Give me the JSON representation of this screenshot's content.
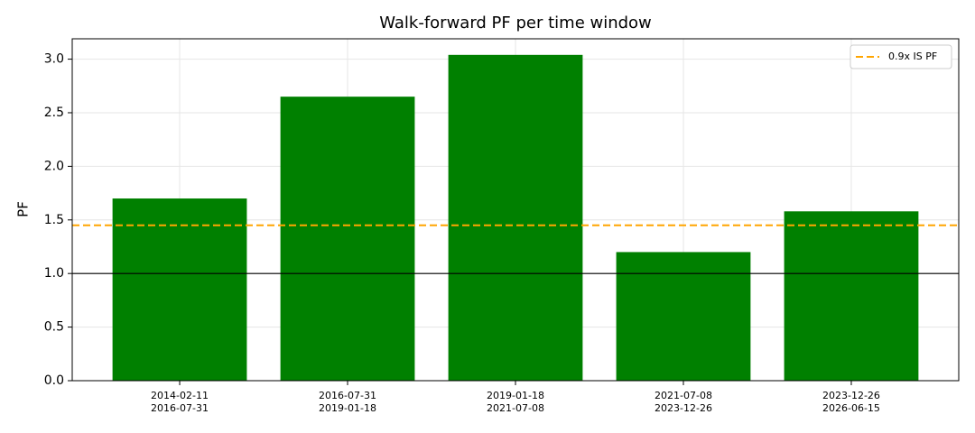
{
  "chart_data": {
    "type": "bar",
    "title": "Walk-forward PF per time window",
    "ylabel": "PF",
    "categories": [
      [
        "2014-02-11",
        "2016-07-31"
      ],
      [
        "2016-07-31",
        "2019-01-18"
      ],
      [
        "2019-01-18",
        "2021-07-08"
      ],
      [
        "2021-07-08",
        "2023-12-26"
      ],
      [
        "2023-12-26",
        "2026-06-15"
      ]
    ],
    "values": [
      1.7,
      2.65,
      3.04,
      1.2,
      1.58
    ],
    "color": "#008000",
    "ylim": [
      0,
      3.19
    ],
    "yticks": [
      {
        "value": 0,
        "label": "0.0"
      },
      {
        "value": 0.5,
        "label": "0.5"
      },
      {
        "value": 1,
        "label": "1.0"
      },
      {
        "value": 1.5,
        "label": "1.5"
      },
      {
        "value": 2,
        "label": "2.0"
      },
      {
        "value": 2.5,
        "label": "2.5"
      },
      {
        "value": 3,
        "label": "3.0"
      }
    ],
    "grid": true,
    "hlines": [
      {
        "value": 1.45,
        "color": "#ffa500",
        "dashed": true,
        "name": "0.9x IS PF"
      },
      {
        "value": 1.0,
        "color": "#000000",
        "dashed": false
      }
    ],
    "legend": "upper right"
  }
}
